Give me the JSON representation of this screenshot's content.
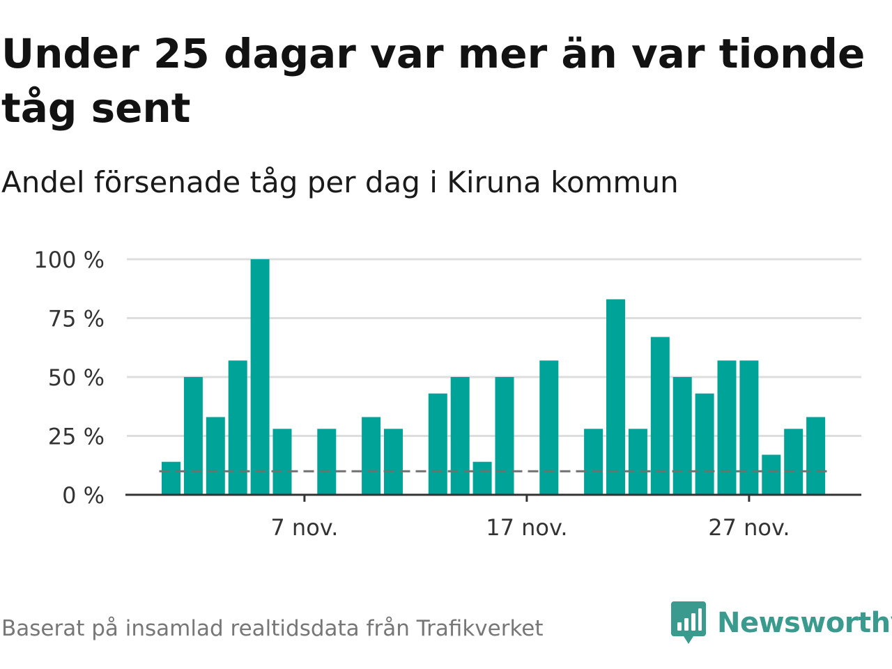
{
  "title": "Under 25 dagar var mer än var tionde tåg sent",
  "subtitle": "Andel försenade tåg per dag i Kiruna kommun",
  "source": "Baserat på insamlad realtidsdata från Trafikverket",
  "brand": "Newsworthy",
  "colors": {
    "bar": "#00a398",
    "reference": "#707070",
    "grid": "#dddddd",
    "axis": "#333333",
    "brand": "#3a9a8e"
  },
  "chart_data": {
    "type": "bar",
    "x": [
      1,
      2,
      3,
      4,
      5,
      6,
      7,
      8,
      9,
      10,
      11,
      12,
      13,
      14,
      15,
      16,
      17,
      18,
      19,
      20,
      21,
      22,
      23,
      24,
      25,
      26,
      27,
      28,
      29,
      30
    ],
    "values": [
      14,
      50,
      33,
      57,
      100,
      28,
      0,
      28,
      0,
      33,
      28,
      0,
      43,
      50,
      14,
      50,
      0,
      57,
      0,
      28,
      83,
      28,
      67,
      50,
      43,
      57,
      57,
      17,
      28,
      33
    ],
    "reference_line": {
      "value": 10,
      "style": "dashed"
    },
    "y_ticks": [
      {
        "value": 0,
        "label": "0 %"
      },
      {
        "value": 25,
        "label": "25 %"
      },
      {
        "value": 50,
        "label": "50 %"
      },
      {
        "value": 75,
        "label": "75 %"
      },
      {
        "value": 100,
        "label": "100 %"
      }
    ],
    "x_ticks": [
      {
        "value": 7,
        "label": "7 nov."
      },
      {
        "value": 17,
        "label": "17 nov."
      },
      {
        "value": 27,
        "label": "27 nov."
      }
    ],
    "ylim": [
      0,
      100
    ],
    "xlim": [
      1,
      30
    ],
    "grid": true,
    "legend": false
  }
}
